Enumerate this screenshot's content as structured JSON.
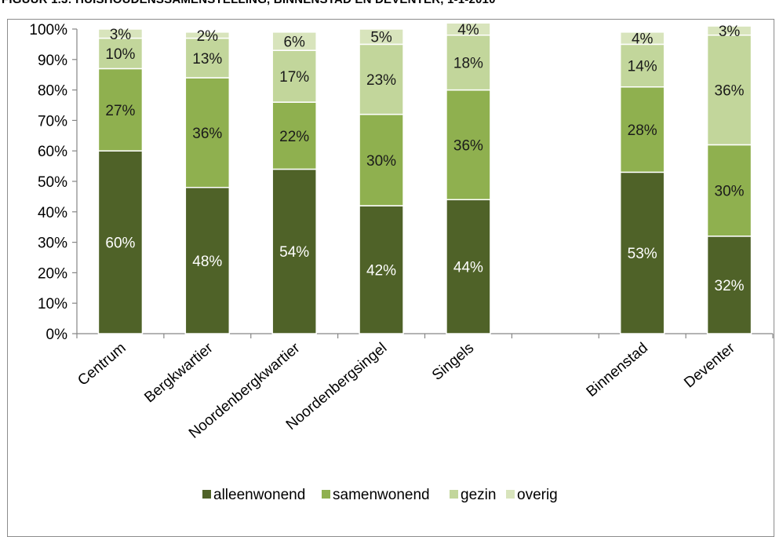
{
  "title": "FIGUUR 1.3: HUISHOUDENSSAMENSTELLING, BINNENSTAD EN DEVENTER, 1-1-2010",
  "colors": {
    "alleenwonend": "#4f6228",
    "samenwonend": "#8fb04f",
    "gezin": "#c2d69b",
    "overig": "#d8e4bc"
  },
  "chart_data": {
    "type": "bar",
    "stacked": true,
    "categories": [
      "Centrum",
      "Bergkwartier",
      "Noordenbergkwartier",
      "Noordenbergsingel",
      "Singels",
      "",
      "Binnenstad",
      "Deventer"
    ],
    "series": [
      {
        "name": "alleenwonend",
        "values": [
          60,
          48,
          54,
          42,
          44,
          null,
          53,
          32
        ],
        "labels": [
          "60%",
          "48%",
          "54%",
          "42%",
          "44%",
          "",
          "53%",
          "32%"
        ]
      },
      {
        "name": "samenwonend",
        "values": [
          27,
          36,
          22,
          30,
          36,
          null,
          28,
          30
        ],
        "labels": [
          "27%",
          "36%",
          "22%",
          "30%",
          "36%",
          "",
          "28%",
          "30%"
        ]
      },
      {
        "name": "gezin",
        "values": [
          10,
          13,
          17,
          23,
          18,
          null,
          14,
          36
        ],
        "labels": [
          "10%",
          "13%",
          "17%",
          "23%",
          "18%",
          "",
          "14%",
          "36%"
        ]
      },
      {
        "name": "overig",
        "values": [
          3,
          2,
          6,
          5,
          4,
          null,
          4,
          3
        ],
        "labels": [
          "3%",
          "2%",
          "6%",
          "5%",
          "4%",
          "",
          "4%",
          "3%"
        ]
      }
    ],
    "yticks": [
      "0%",
      "10%",
      "20%",
      "30%",
      "40%",
      "50%",
      "60%",
      "70%",
      "80%",
      "90%",
      "100%"
    ],
    "ylim": [
      0,
      100
    ],
    "legend_position": "bottom",
    "grid": false
  }
}
